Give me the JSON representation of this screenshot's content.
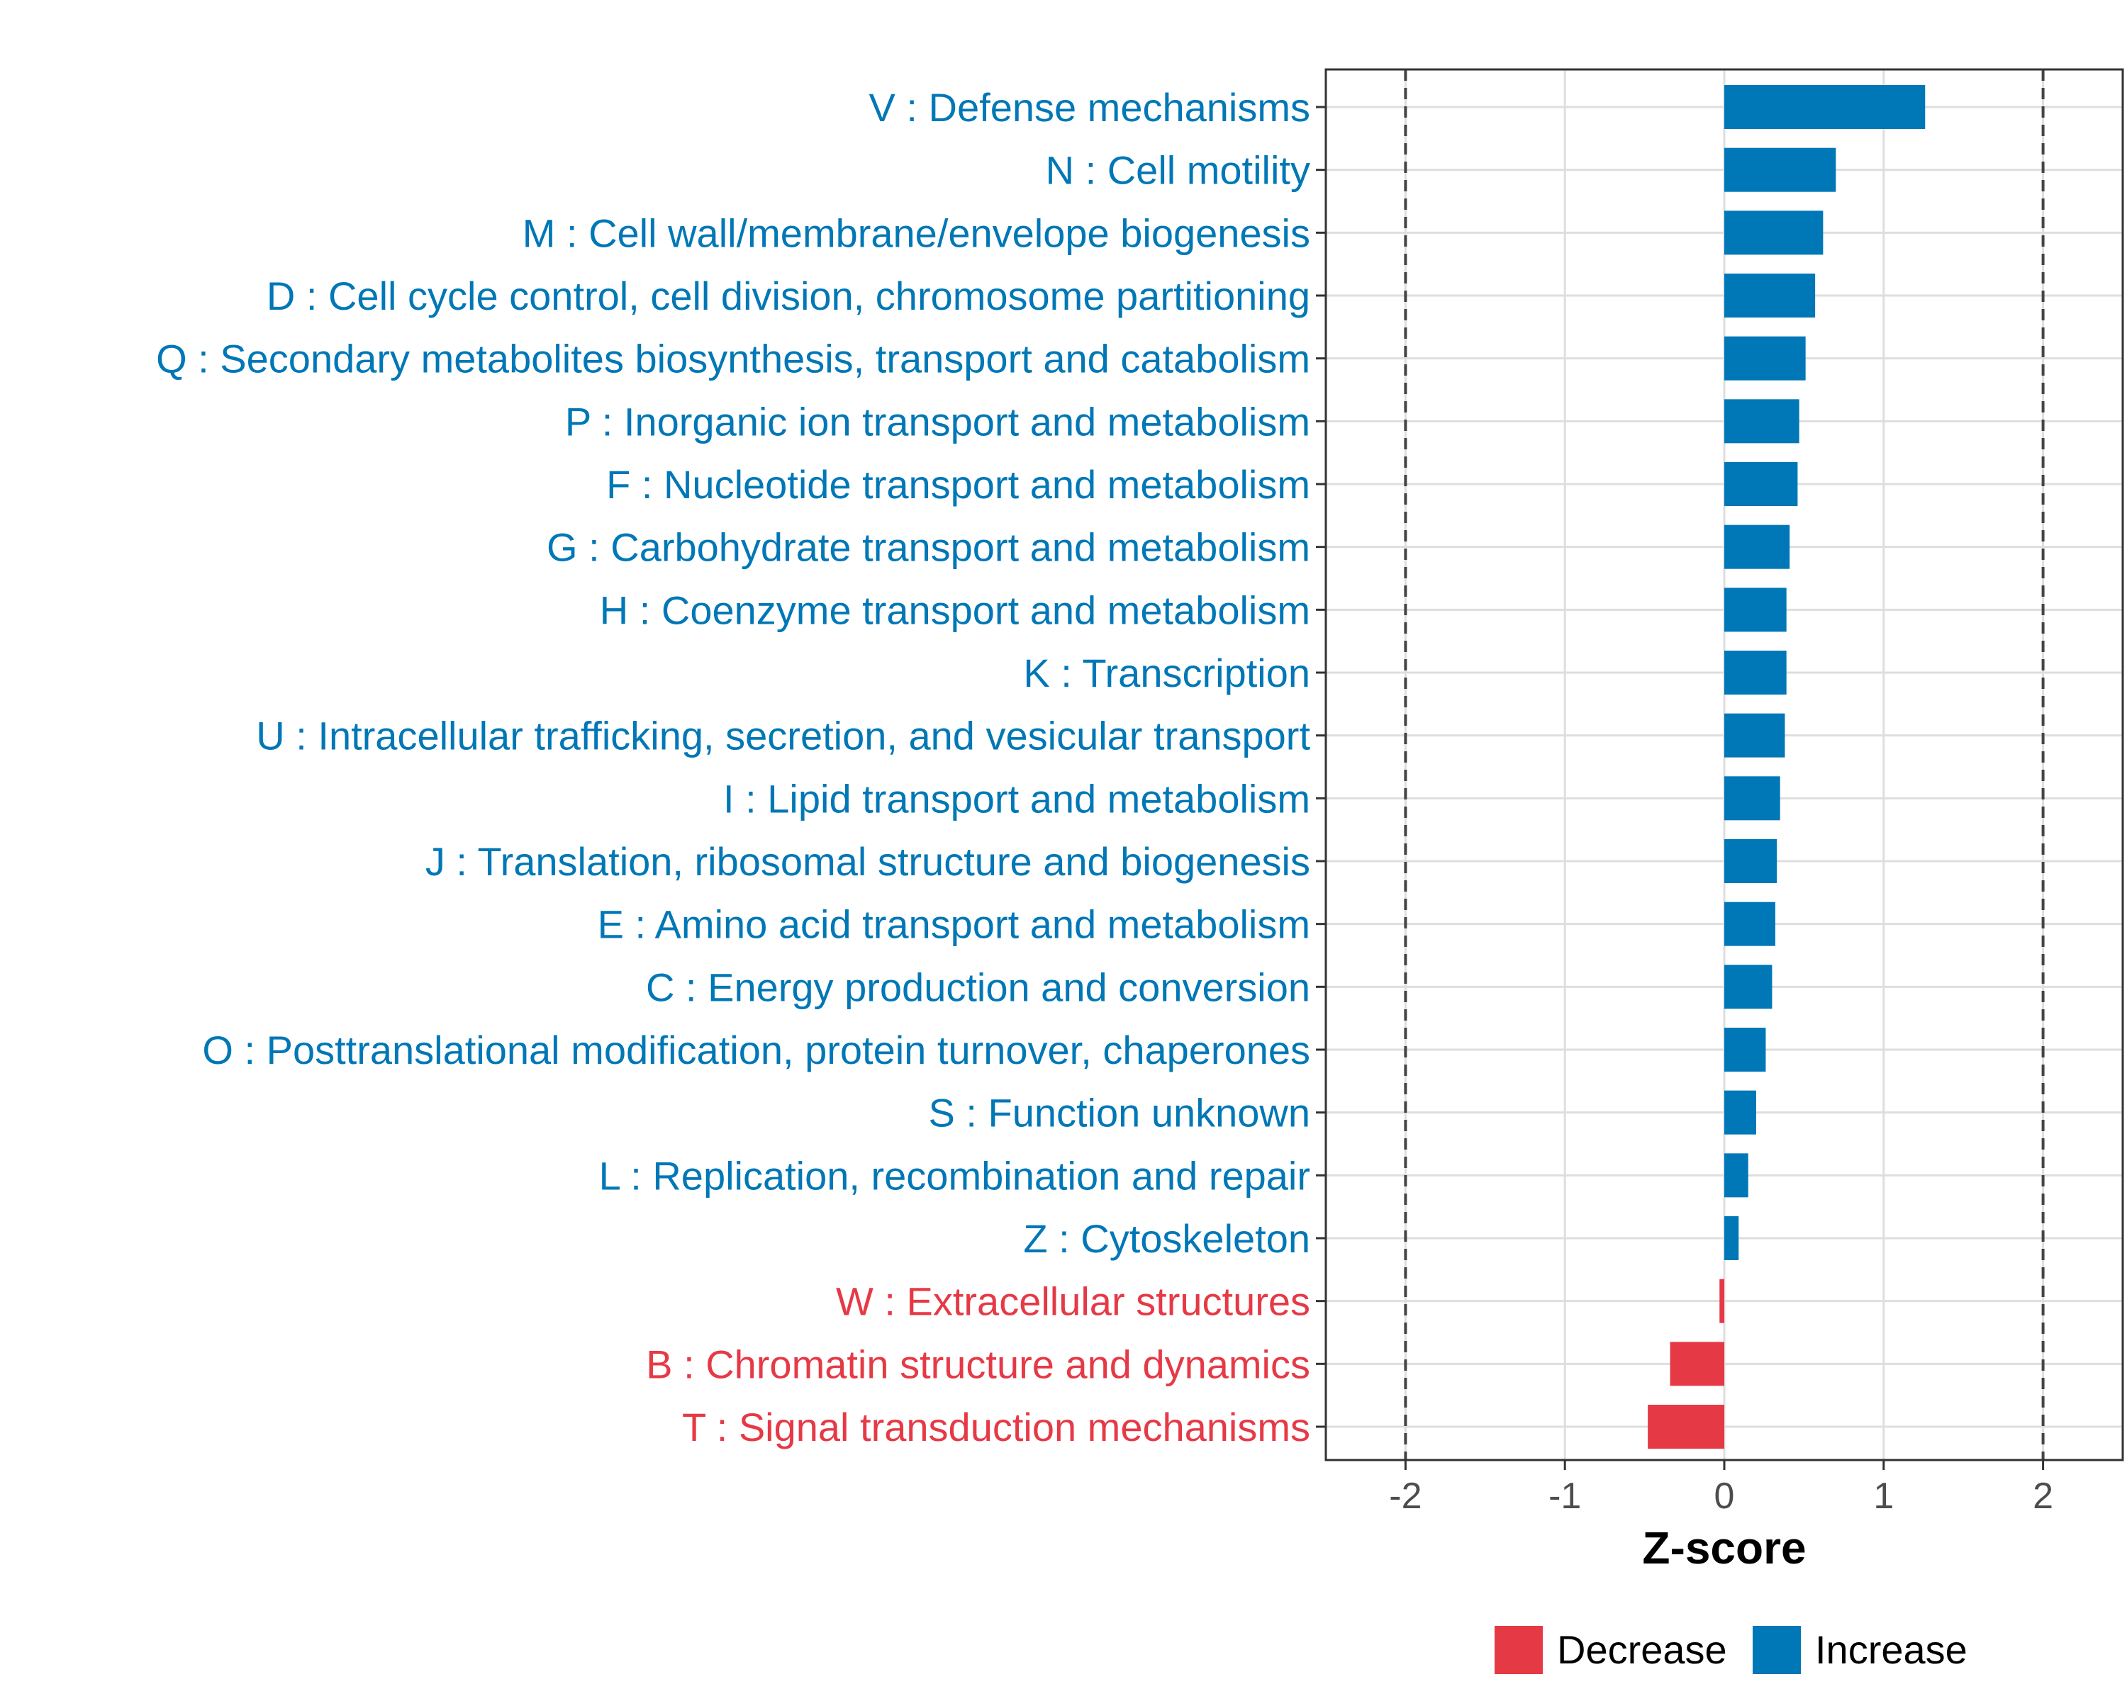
{
  "chart_data": {
    "type": "bar",
    "orientation": "horizontal",
    "xlabel": "Z-score",
    "xlim": [
      -2.5,
      2.5
    ],
    "xticks": [
      -2,
      -1,
      0,
      1,
      2
    ],
    "xtick_labels": [
      "-2",
      "-1",
      "0",
      "1",
      "2"
    ],
    "reference_lines": [
      -2,
      2
    ],
    "grid": true,
    "legend_position": "bottom",
    "legend": [
      {
        "name": "Decrease",
        "color": "#e63946"
      },
      {
        "name": "Increase",
        "color": "#0077b6"
      }
    ],
    "categories": [
      "V : Defense mechanisms",
      "N : Cell motility",
      "M : Cell wall/membrane/envelope biogenesis",
      "D : Cell cycle control, cell division, chromosome partitioning",
      "Q : Secondary metabolites biosynthesis, transport and catabolism",
      "P : Inorganic ion transport and metabolism",
      "F : Nucleotide transport and metabolism",
      "G : Carbohydrate transport and metabolism",
      "H : Coenzyme transport and metabolism",
      "K : Transcription",
      "U : Intracellular trafficking, secretion, and vesicular transport",
      "I : Lipid transport and metabolism",
      "J : Translation, ribosomal structure and biogenesis",
      "E : Amino acid transport and metabolism",
      "C : Energy production and conversion",
      "O : Posttranslational modification, protein turnover, chaperones",
      "S : Function unknown",
      "L : Replication, recombination and repair",
      "Z : Cytoskeleton",
      "W : Extracellular structures",
      "B : Chromatin structure and dynamics",
      "T : Signal transduction mechanisms"
    ],
    "values": [
      1.26,
      0.7,
      0.62,
      0.57,
      0.51,
      0.47,
      0.46,
      0.41,
      0.39,
      0.39,
      0.38,
      0.35,
      0.33,
      0.32,
      0.3,
      0.26,
      0.2,
      0.15,
      0.09,
      -0.03,
      -0.34,
      -0.48
    ],
    "direction": [
      "Increase",
      "Increase",
      "Increase",
      "Increase",
      "Increase",
      "Increase",
      "Increase",
      "Increase",
      "Increase",
      "Increase",
      "Increase",
      "Increase",
      "Increase",
      "Increase",
      "Increase",
      "Increase",
      "Increase",
      "Increase",
      "Increase",
      "Decrease",
      "Decrease",
      "Decrease"
    ]
  }
}
